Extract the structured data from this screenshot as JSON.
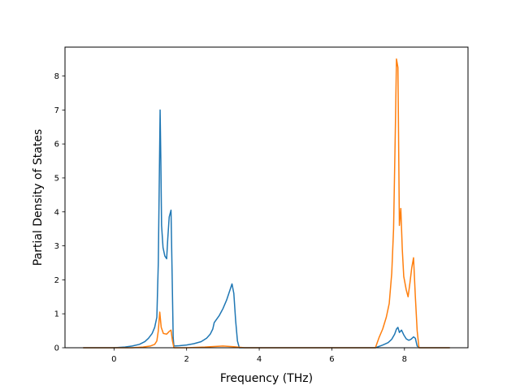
{
  "chart_data": {
    "type": "line",
    "title": "",
    "xlabel": "Frequency (THz)",
    "ylabel": "Partial Density of States",
    "xlim": [
      -1.35,
      9.75
    ],
    "ylim": [
      0,
      8.85
    ],
    "xticks": [
      0,
      2,
      4,
      6,
      8
    ],
    "xtick_labels": [
      "0",
      "2",
      "4",
      "6",
      "8"
    ],
    "yticks": [
      0,
      1,
      2,
      3,
      4,
      5,
      6,
      7,
      8
    ],
    "ytick_labels": [
      "0",
      "1",
      "2",
      "3",
      "4",
      "5",
      "6",
      "7",
      "8"
    ],
    "grid": false,
    "legend": "none",
    "series": [
      {
        "color": "#1f77b4",
        "points": [
          [
            -0.85,
            0
          ],
          [
            0.0,
            0.0
          ],
          [
            0.3,
            0.02
          ],
          [
            0.5,
            0.05
          ],
          [
            0.7,
            0.1
          ],
          [
            0.85,
            0.18
          ],
          [
            0.95,
            0.28
          ],
          [
            1.05,
            0.42
          ],
          [
            1.12,
            0.6
          ],
          [
            1.18,
            0.9
          ],
          [
            1.22,
            2.5
          ],
          [
            1.25,
            5.2
          ],
          [
            1.27,
            7.0
          ],
          [
            1.29,
            5.5
          ],
          [
            1.31,
            3.6
          ],
          [
            1.35,
            2.95
          ],
          [
            1.4,
            2.7
          ],
          [
            1.45,
            2.62
          ],
          [
            1.48,
            3.2
          ],
          [
            1.52,
            3.85
          ],
          [
            1.57,
            4.05
          ],
          [
            1.6,
            2.2
          ],
          [
            1.63,
            0.3
          ],
          [
            1.65,
            0.05
          ],
          [
            1.8,
            0.06
          ],
          [
            2.0,
            0.08
          ],
          [
            2.2,
            0.12
          ],
          [
            2.4,
            0.18
          ],
          [
            2.55,
            0.28
          ],
          [
            2.65,
            0.4
          ],
          [
            2.72,
            0.55
          ],
          [
            2.76,
            0.74
          ],
          [
            2.8,
            0.8
          ],
          [
            2.9,
            0.95
          ],
          [
            3.0,
            1.15
          ],
          [
            3.1,
            1.4
          ],
          [
            3.2,
            1.72
          ],
          [
            3.25,
            1.88
          ],
          [
            3.3,
            1.6
          ],
          [
            3.35,
            0.8
          ],
          [
            3.4,
            0.2
          ],
          [
            3.45,
            0.0
          ],
          [
            7.2,
            0.0
          ],
          [
            7.4,
            0.08
          ],
          [
            7.55,
            0.15
          ],
          [
            7.65,
            0.25
          ],
          [
            7.73,
            0.4
          ],
          [
            7.78,
            0.55
          ],
          [
            7.82,
            0.6
          ],
          [
            7.86,
            0.45
          ],
          [
            7.92,
            0.52
          ],
          [
            7.98,
            0.38
          ],
          [
            8.05,
            0.26
          ],
          [
            8.12,
            0.22
          ],
          [
            8.18,
            0.25
          ],
          [
            8.25,
            0.32
          ],
          [
            8.3,
            0.28
          ],
          [
            8.35,
            0.05
          ],
          [
            8.42,
            0.0
          ],
          [
            9.25,
            0.0
          ]
        ]
      },
      {
        "color": "#ff7f0e",
        "points": [
          [
            -0.85,
            0
          ],
          [
            0.5,
            0.0
          ],
          [
            0.8,
            0.02
          ],
          [
            1.0,
            0.05
          ],
          [
            1.12,
            0.1
          ],
          [
            1.18,
            0.2
          ],
          [
            1.22,
            0.5
          ],
          [
            1.26,
            1.05
          ],
          [
            1.3,
            0.6
          ],
          [
            1.36,
            0.42
          ],
          [
            1.45,
            0.4
          ],
          [
            1.52,
            0.48
          ],
          [
            1.57,
            0.52
          ],
          [
            1.61,
            0.2
          ],
          [
            1.65,
            0.0
          ],
          [
            2.0,
            0.0
          ],
          [
            2.5,
            0.02
          ],
          [
            2.8,
            0.04
          ],
          [
            3.0,
            0.05
          ],
          [
            3.3,
            0.03
          ],
          [
            3.6,
            0.0
          ],
          [
            7.2,
            0.0
          ],
          [
            7.3,
            0.3
          ],
          [
            7.4,
            0.55
          ],
          [
            7.5,
            0.9
          ],
          [
            7.58,
            1.3
          ],
          [
            7.65,
            2.2
          ],
          [
            7.7,
            3.5
          ],
          [
            7.75,
            6.5
          ],
          [
            7.78,
            8.5
          ],
          [
            7.82,
            8.25
          ],
          [
            7.86,
            3.6
          ],
          [
            7.9,
            4.1
          ],
          [
            7.94,
            2.9
          ],
          [
            7.98,
            2.1
          ],
          [
            8.05,
            1.7
          ],
          [
            8.1,
            1.5
          ],
          [
            8.15,
            1.9
          ],
          [
            8.2,
            2.35
          ],
          [
            8.25,
            2.65
          ],
          [
            8.3,
            1.5
          ],
          [
            8.35,
            0.5
          ],
          [
            8.4,
            0.0
          ],
          [
            9.25,
            0.0
          ]
        ]
      }
    ]
  }
}
